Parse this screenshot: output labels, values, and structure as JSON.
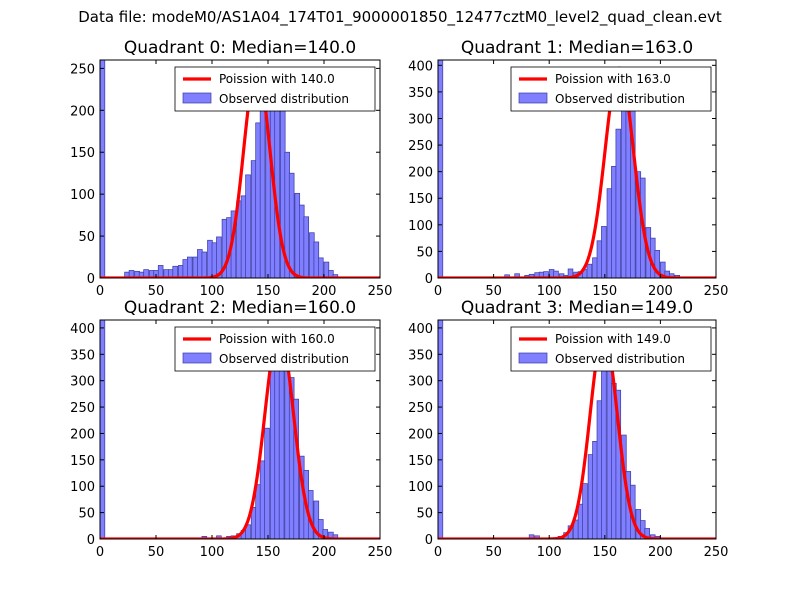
{
  "suptitle": "Data file: modeM0/AS1A04_174T01_9000001850_12477cztM0_level2_quad_clean.evt",
  "colors": {
    "bar_fill": "#7f7fff",
    "bar_edge": "#3a3aa0",
    "fit_line": "#ff0000"
  },
  "chart_data": [
    {
      "type": "bar",
      "title": "Quadrant 0: Median=140.0",
      "xlim": [
        0,
        250
      ],
      "ylim": [
        0,
        260
      ],
      "xticks": [
        0,
        50,
        100,
        150,
        200,
        250
      ],
      "yticks": [
        0,
        50,
        100,
        150,
        200,
        250
      ],
      "legend": {
        "position": "top-right",
        "entries": [
          "Poission with 140.0",
          "Observed distribution"
        ]
      },
      "bin_width": 4.3,
      "bins": [
        [
          0,
          260
        ],
        [
          22,
          7
        ],
        [
          26,
          9
        ],
        [
          31,
          8
        ],
        [
          35,
          7
        ],
        [
          39,
          10
        ],
        [
          44,
          9
        ],
        [
          48,
          9
        ],
        [
          52,
          15
        ],
        [
          57,
          10
        ],
        [
          61,
          10
        ],
        [
          65,
          14
        ],
        [
          70,
          15
        ],
        [
          74,
          22
        ],
        [
          78,
          25
        ],
        [
          83,
          25
        ],
        [
          87,
          34
        ],
        [
          91,
          31
        ],
        [
          96,
          45
        ],
        [
          100,
          42
        ],
        [
          104,
          49
        ],
        [
          109,
          70
        ],
        [
          113,
          72
        ],
        [
          117,
          80
        ],
        [
          122,
          92
        ],
        [
          126,
          98
        ],
        [
          130,
          123
        ],
        [
          135,
          140
        ],
        [
          139,
          185
        ],
        [
          143,
          210
        ],
        [
          148,
          208
        ],
        [
          152,
          203
        ],
        [
          156,
          205
        ],
        [
          161,
          215
        ],
        [
          165,
          150
        ],
        [
          169,
          125
        ],
        [
          174,
          101
        ],
        [
          178,
          87
        ],
        [
          182,
          73
        ],
        [
          187,
          54
        ],
        [
          191,
          43
        ],
        [
          195,
          24
        ],
        [
          200,
          19
        ],
        [
          204,
          9
        ],
        [
          208,
          4
        ]
      ],
      "fit": {
        "mean": 140.0,
        "peak": 250
      }
    },
    {
      "type": "bar",
      "title": "Quadrant 1: Median=163.0",
      "xlim": [
        0,
        250
      ],
      "ylim": [
        0,
        410
      ],
      "xticks": [
        0,
        50,
        100,
        150,
        200,
        250
      ],
      "yticks": [
        0,
        50,
        100,
        150,
        200,
        250,
        300,
        350,
        400
      ],
      "legend": {
        "position": "top-right",
        "entries": [
          "Poission with 163.0",
          "Observed distribution"
        ]
      },
      "bin_width": 4.3,
      "bins": [
        [
          0,
          410
        ],
        [
          60,
          6
        ],
        [
          69,
          8
        ],
        [
          78,
          5
        ],
        [
          82,
          7
        ],
        [
          87,
          10
        ],
        [
          91,
          11
        ],
        [
          95,
          12
        ],
        [
          100,
          16
        ],
        [
          104,
          13
        ],
        [
          109,
          8
        ],
        [
          113,
          5
        ],
        [
          117,
          17
        ],
        [
          122,
          11
        ],
        [
          126,
          12
        ],
        [
          130,
          16
        ],
        [
          134,
          26
        ],
        [
          139,
          38
        ],
        [
          143,
          70
        ],
        [
          147,
          97
        ],
        [
          152,
          168
        ],
        [
          156,
          210
        ],
        [
          160,
          280
        ],
        [
          165,
          370
        ],
        [
          169,
          345
        ],
        [
          173,
          315
        ],
        [
          178,
          200
        ],
        [
          182,
          188
        ],
        [
          187,
          95
        ],
        [
          191,
          75
        ],
        [
          195,
          52
        ],
        [
          200,
          30
        ],
        [
          204,
          13
        ],
        [
          208,
          8
        ],
        [
          213,
          5
        ]
      ],
      "fit": {
        "mean": 163.0,
        "peak": 395
      }
    },
    {
      "type": "bar",
      "title": "Quadrant 2: Median=160.0",
      "xlim": [
        0,
        250
      ],
      "ylim": [
        0,
        415
      ],
      "xticks": [
        0,
        50,
        100,
        150,
        200,
        250
      ],
      "yticks": [
        0,
        50,
        100,
        150,
        200,
        250,
        300,
        350,
        400
      ],
      "legend": {
        "position": "top-right",
        "entries": [
          "Poission with 160.0",
          "Observed distribution"
        ]
      },
      "bin_width": 4.3,
      "bins": [
        [
          0,
          415
        ],
        [
          91,
          5
        ],
        [
          104,
          6
        ],
        [
          113,
          5
        ],
        [
          117,
          6
        ],
        [
          122,
          10
        ],
        [
          126,
          16
        ],
        [
          130,
          27
        ],
        [
          135,
          60
        ],
        [
          139,
          103
        ],
        [
          143,
          148
        ],
        [
          147,
          210
        ],
        [
          152,
          322
        ],
        [
          156,
          355
        ],
        [
          160,
          375
        ],
        [
          165,
          325
        ],
        [
          169,
          306
        ],
        [
          173,
          265
        ],
        [
          178,
          157
        ],
        [
          182,
          130
        ],
        [
          186,
          92
        ],
        [
          191,
          72
        ],
        [
          195,
          37
        ],
        [
          199,
          18
        ],
        [
          204,
          13
        ],
        [
          208,
          8
        ]
      ],
      "fit": {
        "mean": 160.0,
        "peak": 395
      }
    },
    {
      "type": "bar",
      "title": "Quadrant 3: Median=149.0",
      "xlim": [
        0,
        250
      ],
      "ylim": [
        0,
        415
      ],
      "xticks": [
        0,
        50,
        100,
        150,
        200,
        250
      ],
      "yticks": [
        0,
        50,
        100,
        150,
        200,
        250,
        300,
        350,
        400
      ],
      "legend": {
        "position": "top-right",
        "entries": [
          "Poission with 149.0",
          "Observed distribution"
        ]
      },
      "bin_width": 4.3,
      "bins": [
        [
          0,
          415
        ],
        [
          82,
          8
        ],
        [
          87,
          6
        ],
        [
          108,
          5
        ],
        [
          113,
          12
        ],
        [
          117,
          25
        ],
        [
          122,
          36
        ],
        [
          126,
          66
        ],
        [
          130,
          105
        ],
        [
          135,
          160
        ],
        [
          139,
          185
        ],
        [
          143,
          262
        ],
        [
          147,
          350
        ],
        [
          152,
          328
        ],
        [
          156,
          295
        ],
        [
          160,
          282
        ],
        [
          165,
          197
        ],
        [
          169,
          128
        ],
        [
          173,
          102
        ],
        [
          178,
          56
        ],
        [
          182,
          35
        ],
        [
          186,
          20
        ],
        [
          191,
          8
        ],
        [
          195,
          5
        ]
      ],
      "fit": {
        "mean": 149.0,
        "peak": 390
      }
    }
  ]
}
